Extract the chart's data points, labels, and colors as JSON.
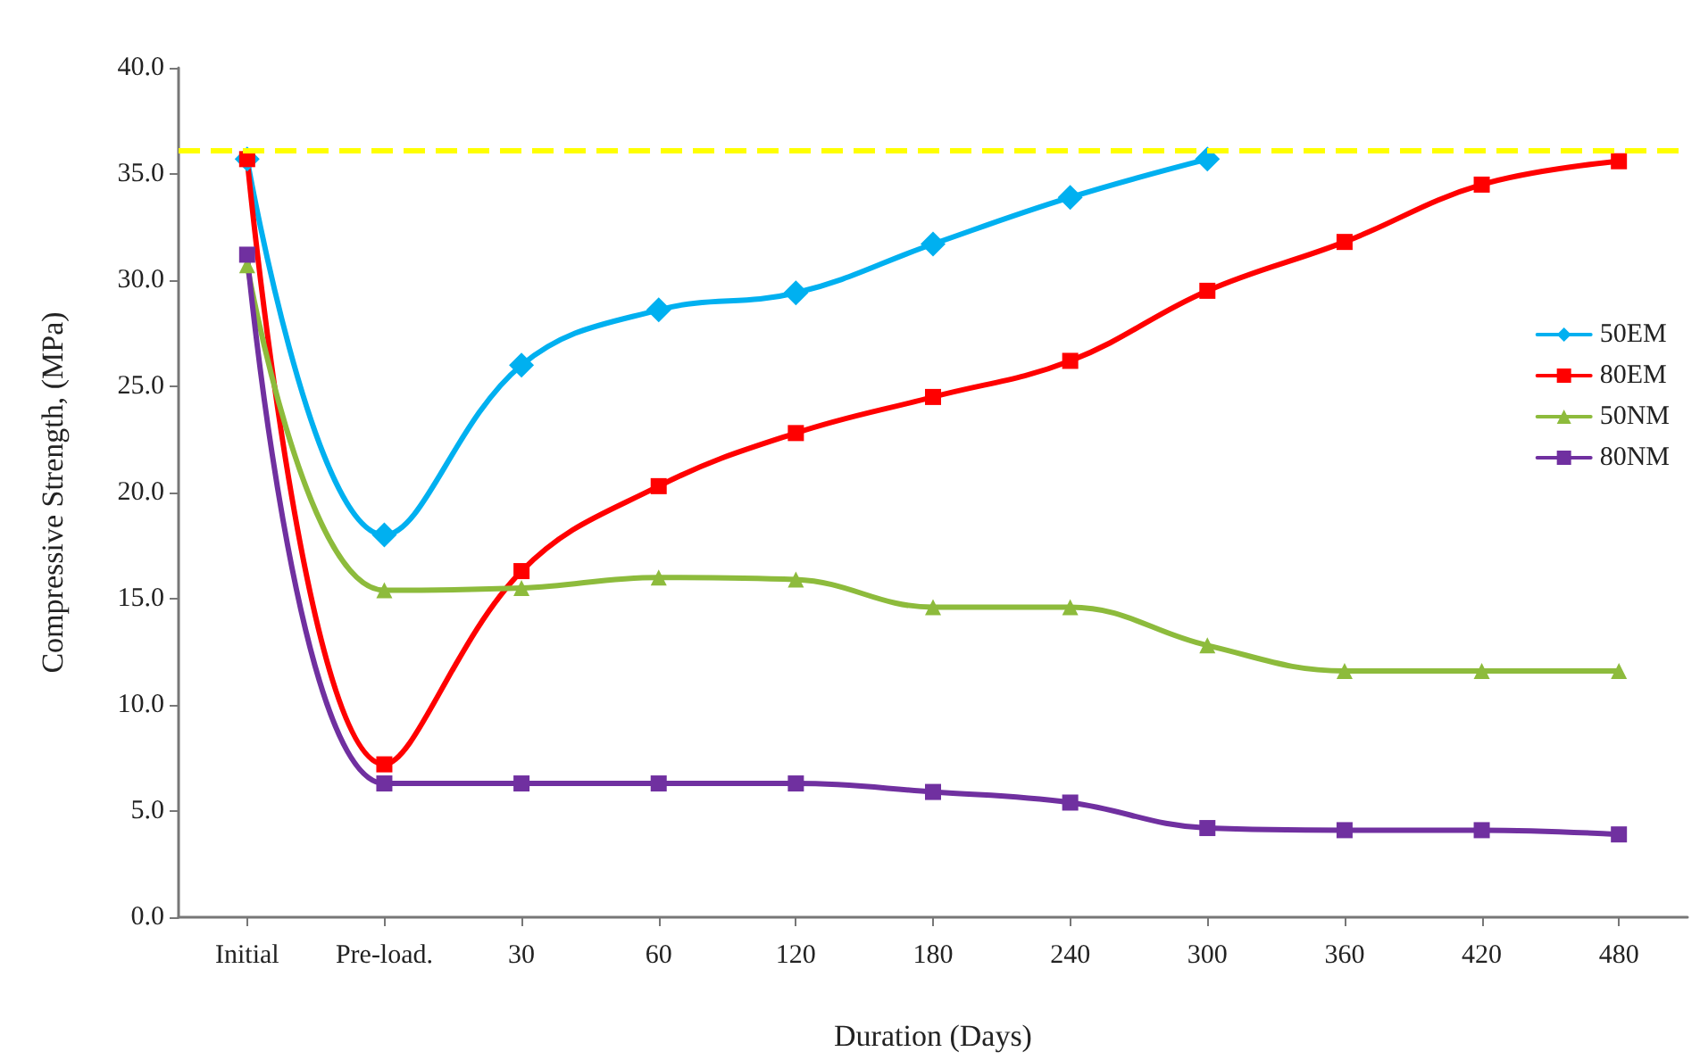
{
  "chart_data": {
    "type": "line",
    "xlabel": "Duration (Days)",
    "ylabel": "Compressive Strength, (MPa)",
    "categories": [
      "Initial",
      "Pre-load.",
      "30",
      "60",
      "120",
      "180",
      "240",
      "300",
      "360",
      "420",
      "480"
    ],
    "series": [
      {
        "name": "50EM",
        "color": "#00b0f0",
        "marker": "diamond",
        "values": [
          35.7,
          18.0,
          26.0,
          28.6,
          29.4,
          31.7,
          33.9,
          35.7,
          null,
          null,
          null
        ]
      },
      {
        "name": "80EM",
        "color": "#ff0000",
        "marker": "square",
        "values": [
          35.7,
          7.2,
          16.3,
          20.3,
          22.8,
          24.5,
          26.2,
          29.5,
          31.8,
          34.5,
          35.6
        ]
      },
      {
        "name": "50NM",
        "color": "#8dbb3c",
        "marker": "triangle",
        "values": [
          30.7,
          15.4,
          15.5,
          16.0,
          15.9,
          14.6,
          14.6,
          12.8,
          11.6,
          11.6,
          11.6
        ]
      },
      {
        "name": "80NM",
        "color": "#7030a0",
        "marker": "square",
        "values": [
          31.2,
          6.3,
          6.3,
          6.3,
          6.3,
          5.9,
          5.4,
          4.2,
          4.1,
          4.1,
          3.9
        ]
      }
    ],
    "ylim": [
      0,
      40
    ],
    "yticks": [
      {
        "value": 0,
        "label": "0.0"
      },
      {
        "value": 5,
        "label": "5.0"
      },
      {
        "value": 10,
        "label": "10.0"
      },
      {
        "value": 15,
        "label": "15.0"
      },
      {
        "value": 20,
        "label": "20.0"
      },
      {
        "value": 25,
        "label": "25.0"
      },
      {
        "value": 30,
        "label": "30.0"
      },
      {
        "value": 35,
        "label": "35.0"
      },
      {
        "value": 40,
        "label": "40.0"
      }
    ],
    "ref_lines": [
      {
        "axis": "y",
        "value": 36.1,
        "color": "#ffff00",
        "line_style": "dashed"
      }
    ],
    "grid": false,
    "legend": "right",
    "line_style": "solid"
  }
}
